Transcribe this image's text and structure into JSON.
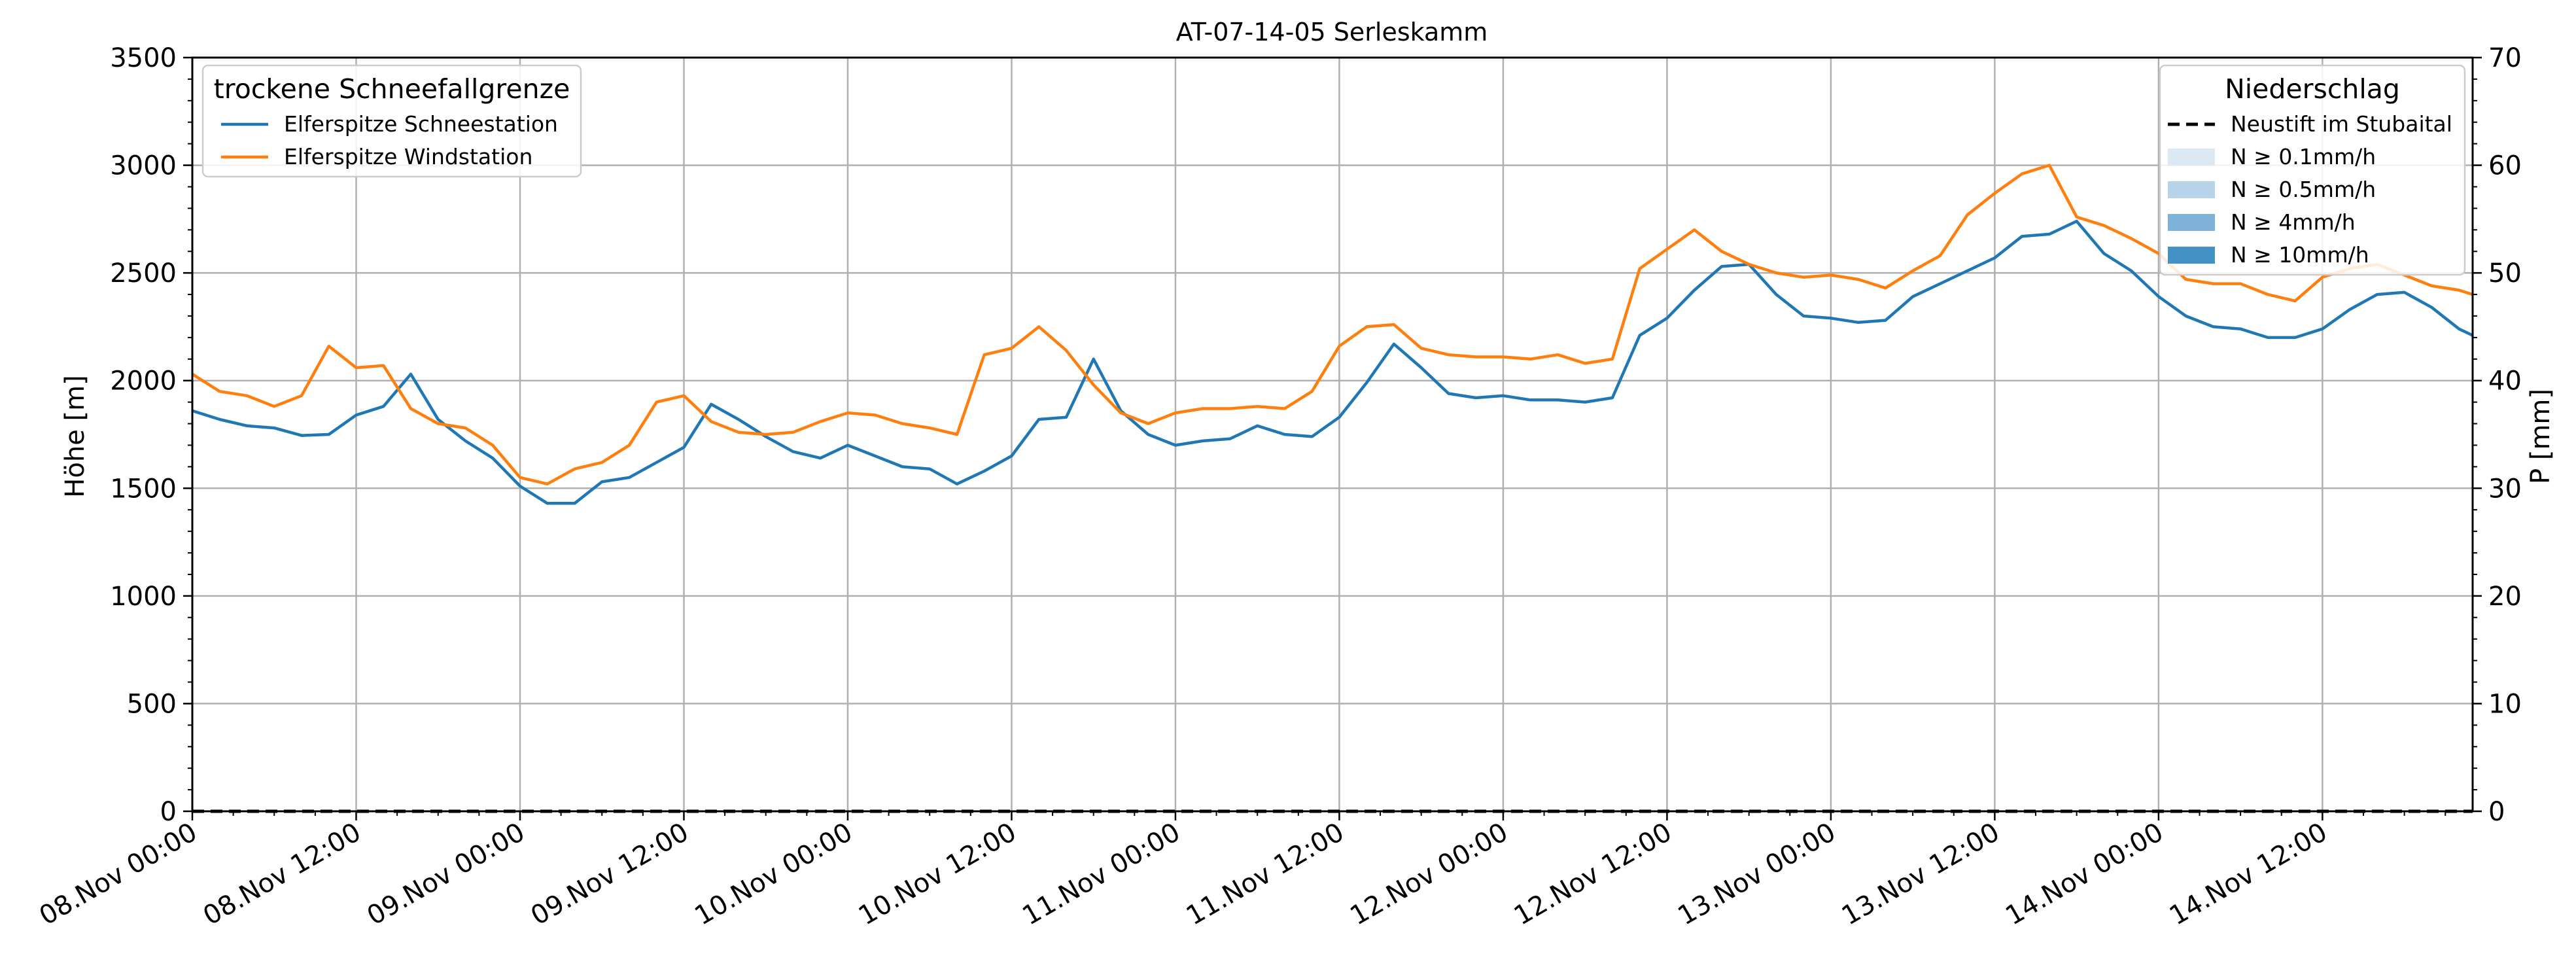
{
  "chart_data": {
    "type": "line",
    "title": "AT-07-14-05 Serleskamm",
    "ylabel": "Höhe [m]",
    "ylabel_right": "P [mm]",
    "ylim": [
      0,
      3500
    ],
    "ylim_right": [
      0,
      70
    ],
    "yticks": [
      0,
      500,
      1000,
      1500,
      2000,
      2500,
      3000,
      3500
    ],
    "yticks_right": [
      0,
      10,
      20,
      30,
      40,
      50,
      60,
      70
    ],
    "x_hours_range": [
      0,
      167
    ],
    "xticks": [
      {
        "label": "08.Nov 00:00",
        "hour": 0
      },
      {
        "label": "08.Nov 12:00",
        "hour": 12
      },
      {
        "label": "09.Nov 00:00",
        "hour": 24
      },
      {
        "label": "09.Nov 12:00",
        "hour": 36
      },
      {
        "label": "10.Nov 00:00",
        "hour": 48
      },
      {
        "label": "10.Nov 12:00",
        "hour": 60
      },
      {
        "label": "11.Nov 00:00",
        "hour": 72
      },
      {
        "label": "11.Nov 12:00",
        "hour": 84
      },
      {
        "label": "12.Nov 00:00",
        "hour": 96
      },
      {
        "label": "12.Nov 12:00",
        "hour": 108
      },
      {
        "label": "13.Nov 00:00",
        "hour": 120
      },
      {
        "label": "13.Nov 12:00",
        "hour": 132
      },
      {
        "label": "14.Nov 00:00",
        "hour": 144
      },
      {
        "label": "14.Nov 12:00",
        "hour": 156
      }
    ],
    "grid": true,
    "legend_left": {
      "title": "trockene Schneefallgrenze",
      "placement": "upper-left",
      "entries": [
        "Elferspitze Schneestation",
        "Elferspitze Windstation"
      ]
    },
    "legend_right": {
      "title": "Niederschlag",
      "placement": "upper-right",
      "entries": [
        "Neustift im Stubaital",
        "N ≥ 0.1mm/h",
        "N ≥ 0.5mm/h",
        "N ≥ 4mm/h",
        "N ≥ 10mm/h"
      ]
    },
    "series": [
      {
        "name": "Elferspitze Schneestation",
        "color": "#1f77b4",
        "x": [
          0,
          2,
          4,
          6,
          8,
          10,
          12,
          14,
          16,
          18,
          20,
          22,
          24,
          26,
          28,
          30,
          32,
          34,
          36,
          38,
          40,
          42,
          44,
          46,
          48,
          50,
          52,
          54,
          56,
          58,
          60,
          62,
          64,
          66,
          68,
          70,
          72,
          74,
          76,
          78,
          80,
          82,
          84,
          86,
          88,
          90,
          92,
          94,
          96,
          98,
          100,
          102,
          104,
          106,
          108,
          110,
          112,
          114,
          116,
          118,
          120,
          122,
          124,
          126,
          128,
          130,
          132,
          134,
          136,
          138,
          140,
          142,
          144,
          146,
          148,
          150,
          152,
          154,
          156,
          158,
          160,
          162,
          164,
          166,
          167
        ],
        "y": [
          1860,
          1820,
          1790,
          1780,
          1745,
          1750,
          1840,
          1880,
          2030,
          1820,
          1720,
          1640,
          1510,
          1430,
          1430,
          1530,
          1550,
          1620,
          1690,
          1890,
          1820,
          1740,
          1670,
          1640,
          1700,
          1650,
          1600,
          1590,
          1520,
          1580,
          1650,
          1820,
          1830,
          2100,
          1860,
          1750,
          1700,
          1720,
          1730,
          1790,
          1750,
          1740,
          1830,
          1990,
          2170,
          2060,
          1940,
          1920,
          1930,
          1910,
          1910,
          1900,
          1920,
          2210,
          2290,
          2420,
          2530,
          2540,
          2400,
          2300,
          2290,
          2270,
          2280,
          2390,
          2450,
          2510,
          2570,
          2670,
          2680,
          2740,
          2590,
          2510,
          2390,
          2300,
          2250,
          2240,
          2200,
          2200,
          2240,
          2330,
          2400,
          2410,
          2340,
          2240,
          2210
        ]
      },
      {
        "name": "Elferspitze Windstation",
        "color": "#ff7f0e",
        "x": [
          0,
          2,
          4,
          6,
          8,
          10,
          12,
          14,
          16,
          18,
          20,
          22,
          24,
          26,
          28,
          30,
          32,
          34,
          36,
          38,
          40,
          42,
          44,
          46,
          48,
          50,
          52,
          54,
          56,
          58,
          60,
          62,
          64,
          66,
          68,
          70,
          72,
          74,
          76,
          78,
          80,
          82,
          84,
          86,
          88,
          90,
          92,
          94,
          96,
          98,
          100,
          102,
          104,
          106,
          108,
          110,
          112,
          114,
          116,
          118,
          120,
          122,
          124,
          126,
          128,
          130,
          132,
          134,
          136,
          138,
          140,
          142,
          144,
          146,
          148,
          150,
          152,
          154,
          156,
          158,
          160,
          162,
          164,
          166,
          167
        ],
        "y": [
          2030,
          1950,
          1930,
          1880,
          1930,
          2160,
          2060,
          2070,
          1870,
          1800,
          1780,
          1700,
          1550,
          1520,
          1590,
          1620,
          1700,
          1900,
          1930,
          1810,
          1760,
          1750,
          1760,
          1810,
          1850,
          1840,
          1800,
          1780,
          1750,
          2120,
          2150,
          2250,
          2140,
          1980,
          1850,
          1800,
          1850,
          1870,
          1870,
          1880,
          1870,
          1950,
          2160,
          2250,
          2260,
          2150,
          2120,
          2110,
          2110,
          2100,
          2120,
          2080,
          2100,
          2520,
          2610,
          2700,
          2600,
          2540,
          2500,
          2480,
          2490,
          2470,
          2430,
          2510,
          2580,
          2770,
          2870,
          2960,
          3000,
          2760,
          2720,
          2660,
          2590,
          2470,
          2450,
          2450,
          2400,
          2370,
          2480,
          2520,
          2540,
          2490,
          2440,
          2420,
          2400
        ]
      },
      {
        "name": "Neustift im Stubaital",
        "axis": "right",
        "color": "#000000",
        "x": [
          0,
          167
        ],
        "y": [
          0,
          0
        ]
      }
    ],
    "precip_colors": [
      "#dce9f5",
      "#b6d3ea",
      "#7fb2d9",
      "#4292c6"
    ]
  }
}
